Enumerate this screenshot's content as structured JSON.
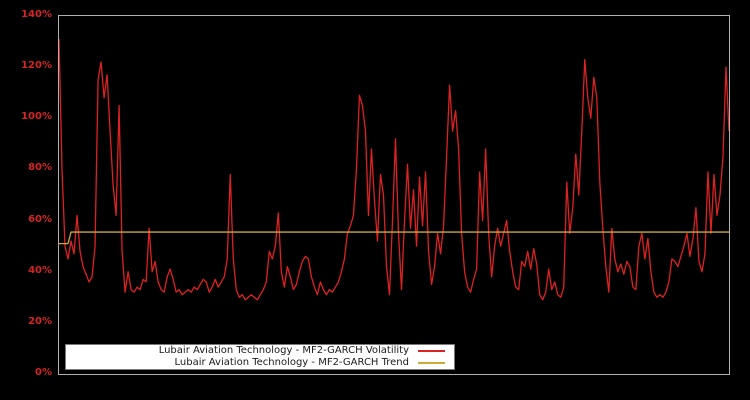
{
  "figure": {
    "background_color": "#000000",
    "plot_border_color": "#b0b0b0"
  },
  "legend": {
    "background_color": "#ffffff",
    "entries": [
      {
        "label": "Lubair Aviation Technology - MF2-GARCH Volatility",
        "color": "#dd2222"
      },
      {
        "label": "Lubair Aviation Technology - MF2-GARCH Trend",
        "color": "#ccaa33"
      }
    ]
  },
  "chart_data": {
    "type": "line",
    "title": "",
    "xlabel": "",
    "ylabel": "",
    "ylim": [
      0,
      140
    ],
    "grid": false,
    "legend_position": "bottom-left-inside",
    "yticks": [
      {
        "label": "0%",
        "value": 0
      },
      {
        "label": "20%",
        "value": 20
      },
      {
        "label": "40%",
        "value": 40
      },
      {
        "label": "60%",
        "value": 60
      },
      {
        "label": "80%",
        "value": 80
      },
      {
        "label": "100%",
        "value": 100
      },
      {
        "label": "120%",
        "value": 120
      },
      {
        "label": "140%",
        "value": 140
      }
    ],
    "ytick_label_color": "#d42525",
    "series": [
      {
        "name": "Lubair Aviation Technology - MF2-GARCH Volatility",
        "color": "#dd2222",
        "unit": "percent",
        "values": [
          131,
          80,
          50,
          45,
          52,
          47,
          62,
          48,
          42,
          39,
          36,
          38,
          50,
          115,
          122,
          108,
          117,
          95,
          74,
          62,
          105,
          48,
          32,
          40,
          33,
          32,
          34,
          33,
          37,
          36,
          57,
          40,
          44,
          36,
          33,
          32,
          38,
          41,
          37,
          32,
          33,
          31,
          32,
          33,
          32,
          34,
          33,
          35,
          37,
          36,
          32,
          34,
          37,
          34,
          36,
          38,
          45,
          78,
          45,
          33,
          30,
          31,
          29,
          30,
          31,
          30,
          29,
          31,
          33,
          36,
          48,
          45,
          50,
          63,
          40,
          34,
          42,
          38,
          33,
          35,
          40,
          44,
          46,
          45,
          38,
          34,
          31,
          36,
          33,
          31,
          33,
          32,
          34,
          36,
          40,
          45,
          55,
          58,
          62,
          80,
          109,
          105,
          95,
          62,
          88,
          68,
          52,
          78,
          70,
          42,
          31,
          60,
          92,
          55,
          33,
          60,
          82,
          57,
          72,
          50,
          77,
          58,
          79,
          48,
          35,
          42,
          55,
          47,
          58,
          85,
          113,
          95,
          103,
          88,
          55,
          40,
          34,
          32,
          37,
          41,
          79,
          60,
          88,
          55,
          38,
          50,
          57,
          50,
          55,
          60,
          48,
          40,
          34,
          33,
          44,
          42,
          48,
          41,
          49,
          43,
          31,
          29,
          32,
          41,
          33,
          36,
          31,
          30,
          34,
          75,
          55,
          65,
          86,
          70,
          95,
          123,
          108,
          100,
          116,
          108,
          75,
          57,
          42,
          32,
          57,
          45,
          40,
          43,
          39,
          44,
          42,
          34,
          33,
          50,
          55,
          45,
          53,
          40,
          32,
          30,
          31,
          30,
          32,
          36,
          45,
          44,
          42,
          46,
          50,
          55,
          46,
          53,
          65,
          44,
          40,
          47,
          79,
          55,
          78,
          62,
          70,
          85,
          120,
          95
        ]
      },
      {
        "name": "Lubair Aviation Technology - MF2-GARCH Trend",
        "color": "#ccaa33",
        "unit": "percent",
        "segments": [
          {
            "count": 4,
            "value": 51
          },
          {
            "count": 220,
            "value": 55.5
          }
        ]
      }
    ]
  }
}
